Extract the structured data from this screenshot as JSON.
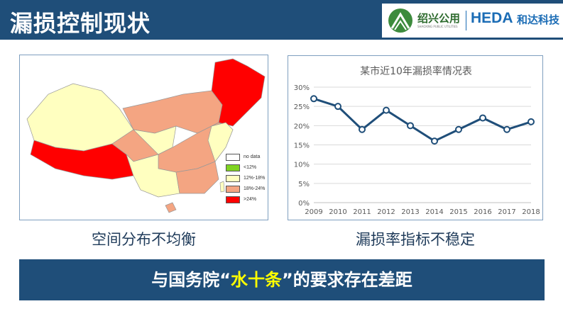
{
  "header": {
    "title": "漏损控制现状",
    "logo_cn": "绍兴公用",
    "logo_en": "SHAOXING PUBLIC UTILITIES",
    "brand": "HEDA",
    "brand_cn": "和达科技"
  },
  "map": {
    "caption": "空间分布不均衡",
    "legend": [
      {
        "label": "no data",
        "color": "#ffffff"
      },
      {
        "label": "<12%",
        "color": "#7fd321"
      },
      {
        "label": "12%-18%",
        "color": "#ffffc0"
      },
      {
        "label": "18%-24%",
        "color": "#f4a582"
      },
      {
        "label": ">24%",
        "color": "#ff0000"
      }
    ]
  },
  "chart_caption": "漏损率指标不稳定",
  "chart_data": {
    "type": "line",
    "title": "某市近10年漏损率情况表",
    "categories": [
      "2009",
      "2010",
      "2011",
      "2012",
      "2013",
      "2014",
      "2015",
      "2016",
      "2017",
      "2018"
    ],
    "values": [
      27,
      25,
      19,
      24,
      20,
      16,
      19,
      22,
      19,
      21
    ],
    "yticks": [
      "0%",
      "5%",
      "10%",
      "15%",
      "20%",
      "25%",
      "30%"
    ],
    "ylim": [
      0,
      30
    ],
    "grid": true,
    "color": "#1f4e79"
  },
  "banner": {
    "pre": "与国务院“",
    "hl": "水十条",
    "post": "”的要求存在差距"
  }
}
